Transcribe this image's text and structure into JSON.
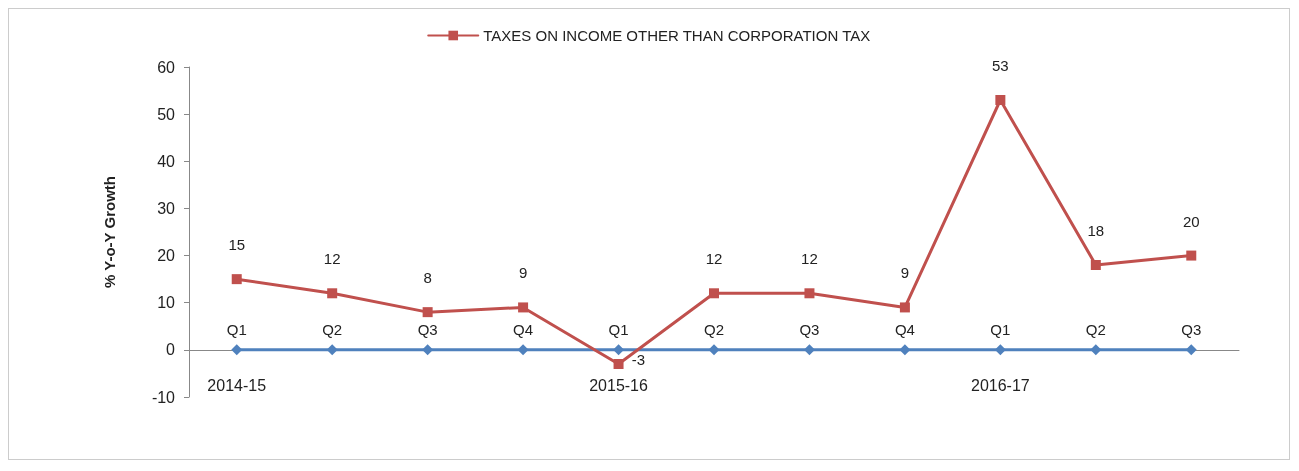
{
  "chart_data": {
    "type": "line",
    "ylabel": "% Y-o-Y Growth",
    "categories": [
      "Q1",
      "Q2",
      "Q3",
      "Q4",
      "Q1",
      "Q2",
      "Q3",
      "Q4",
      "Q1",
      "Q2",
      "Q3"
    ],
    "series": [
      {
        "name": "TAXES ON INCOME OTHER THAN CORPORATION TAX",
        "color": "#c0504d",
        "marker": "square",
        "values": [
          15,
          12,
          8,
          9,
          -3,
          12,
          12,
          9,
          53,
          18,
          20
        ],
        "value_labels": [
          "15",
          "12",
          "8",
          "9",
          "-3",
          "12",
          "12",
          "9",
          "53",
          "18",
          "20"
        ]
      },
      {
        "color": "#4f81bd",
        "marker": "diamond",
        "values": [
          0,
          0,
          0,
          0,
          0,
          0,
          0,
          0,
          0,
          0,
          0
        ]
      }
    ],
    "annotations": [
      "2014-15",
      "2015-16",
      "2016-17"
    ],
    "ylim": [
      -10,
      60
    ],
    "yticks": [
      -10,
      0,
      10,
      20,
      30,
      40,
      50,
      60
    ],
    "grid": false,
    "legend": "top",
    "line_style": "solid"
  }
}
